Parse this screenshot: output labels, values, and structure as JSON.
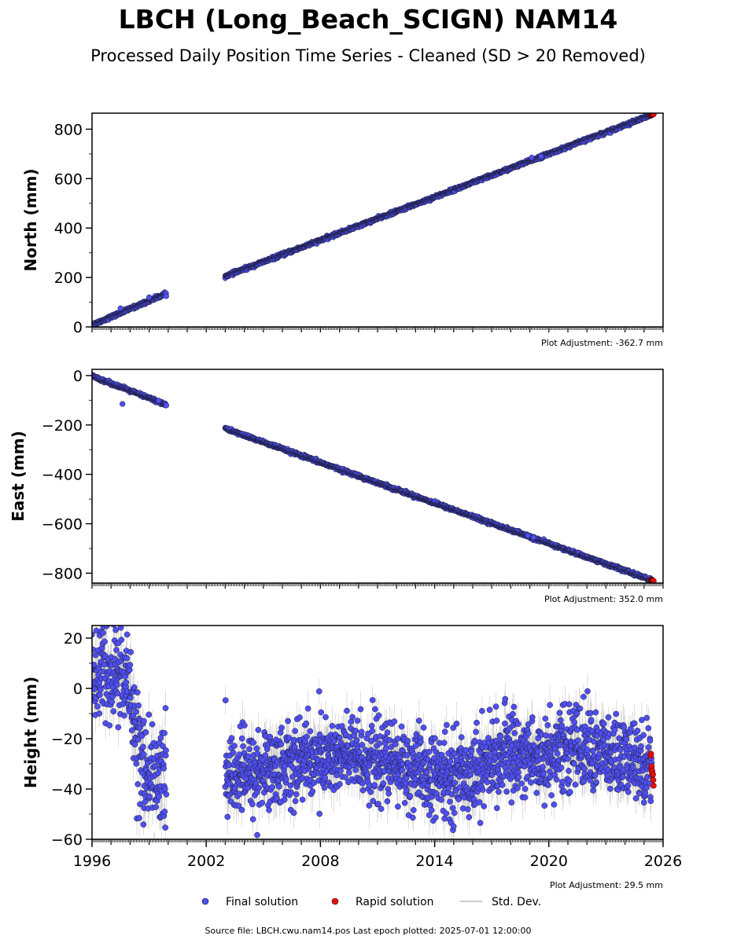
{
  "title": "LBCH (Long_Beach_SCIGN) NAM14",
  "subtitle": "Processed Daily Position Time Series - Cleaned (SD > 20 Removed)",
  "footer": "Source file: LBCH.cwu.nam14.pos  Last epoch plotted: 2025-07-01 12:00:00",
  "legend": {
    "final": "Final solution",
    "rapid": "Rapid solution",
    "std": "Std. Dev."
  },
  "colors": {
    "final": "#4f4ff0",
    "rapid": "#dd1111",
    "edge": "#1a1a33",
    "std": "#999999"
  },
  "chart_data": [
    {
      "type": "scatter",
      "name": "north",
      "ylabel": "North (mm)",
      "adjustment": "Plot Adjustment: -362.7 mm",
      "xlim": [
        1996,
        2026
      ],
      "ylim": [
        0,
        865
      ],
      "yticks": [
        0,
        200,
        400,
        600,
        800
      ],
      "segments": [
        {
          "kind": "trend",
          "x0": 1996.0,
          "y0": 8,
          "x1": 1999.9,
          "y1": 135,
          "noise": 3,
          "outliers": [
            [
              1997.5,
              75
            ],
            [
              1999.0,
              120
            ]
          ]
        },
        {
          "kind": "trend",
          "x0": 2003.0,
          "y0": 205,
          "x1": 2025.4,
          "y1": 858,
          "noise": 3,
          "outliers": [
            [
              2019.6,
              690
            ],
            [
              2019.1,
              685
            ]
          ]
        }
      ],
      "rapid": {
        "x0": 2025.35,
        "x1": 2025.5,
        "y0": 857,
        "y1": 861
      }
    },
    {
      "type": "scatter",
      "name": "east",
      "ylabel": "East (mm)",
      "adjustment": "Plot Adjustment: 352.0 mm",
      "xlim": [
        1996,
        2026
      ],
      "ylim": [
        -840,
        25
      ],
      "yticks": [
        -800,
        -600,
        -400,
        -200,
        0
      ],
      "segments": [
        {
          "kind": "trend",
          "x0": 1996.0,
          "y0": -2,
          "x1": 1999.9,
          "y1": -118,
          "noise": 3,
          "outliers": [
            [
              1997.6,
              -115
            ],
            [
              1999.5,
              -102
            ]
          ]
        },
        {
          "kind": "trend",
          "x0": 2003.0,
          "y0": -215,
          "x1": 2025.4,
          "y1": -828,
          "noise": 3,
          "outliers": [
            [
              2018.9,
              -648
            ],
            [
              2019.2,
              -655
            ]
          ]
        }
      ],
      "rapid": {
        "x0": 2025.35,
        "x1": 2025.5,
        "y0": -826,
        "y1": -831
      }
    },
    {
      "type": "scatter",
      "name": "height",
      "ylabel": "Height (mm)",
      "adjustment": "Plot Adjustment: 29.5 mm",
      "xlim": [
        1996,
        2026
      ],
      "xticks": [
        1996,
        2002,
        2008,
        2014,
        2020,
        2026
      ],
      "ylim": [
        -60,
        25
      ],
      "yticks": [
        -60,
        -40,
        -20,
        0,
        20
      ],
      "segments": [
        {
          "kind": "noisy",
          "x0": 1996.0,
          "x1": 1999.9,
          "mean": [
            [
              1996.0,
              6
            ],
            [
              1997.5,
              6
            ],
            [
              1998.0,
              0
            ],
            [
              1998.6,
              -30
            ],
            [
              1999.2,
              -38
            ],
            [
              1999.9,
              -35
            ]
          ],
          "noise": 11
        },
        {
          "kind": "noisy",
          "x0": 2003.0,
          "x1": 2025.4,
          "mean": [
            [
              2003.0,
              -35
            ],
            [
              2005.0,
              -33
            ],
            [
              2007.0,
              -28
            ],
            [
              2009.5,
              -27
            ],
            [
              2012.0,
              -30
            ],
            [
              2014.0,
              -36
            ],
            [
              2016.0,
              -33
            ],
            [
              2018.0,
              -25
            ],
            [
              2019.5,
              -28
            ],
            [
              2021.5,
              -22
            ],
            [
              2023.5,
              -28
            ],
            [
              2025.4,
              -30
            ]
          ],
          "noise": 8
        }
      ],
      "rapid": {
        "x0": 2025.35,
        "x1": 2025.5,
        "y0": -27,
        "y1": -37
      }
    }
  ]
}
